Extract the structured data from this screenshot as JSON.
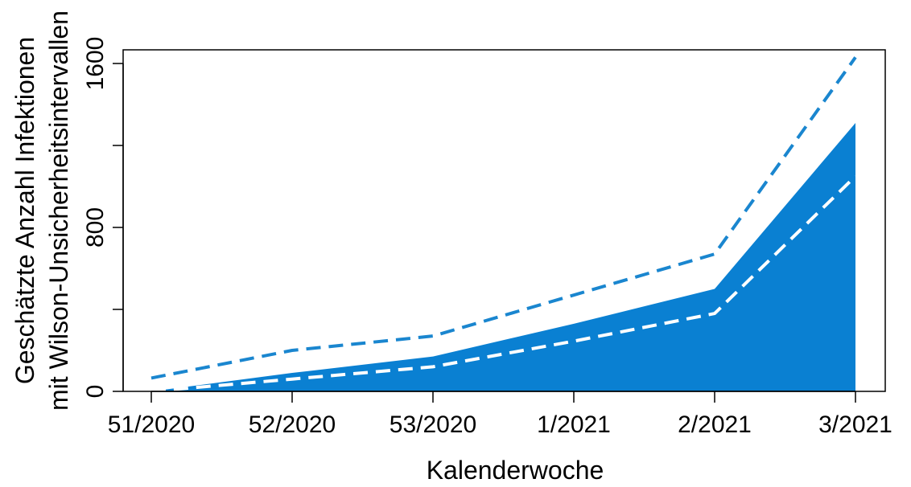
{
  "chart_data": {
    "type": "area",
    "title": "",
    "xlabel": "Kalenderwoche",
    "ylabel_lines": [
      "Geschätzte Anzahl Infektionen",
      "mit Wilson-Unsicherheitsintervallen"
    ],
    "categories": [
      "51/2020",
      "52/2020",
      "53/2020",
      "1/2021",
      "2/2021",
      "3/2021"
    ],
    "ylim": [
      0,
      1600
    ],
    "yticks": [
      0,
      400,
      800,
      1200,
      1600
    ],
    "ytick_labels": [
      "0",
      "",
      "800",
      "",
      "1600"
    ],
    "series": [
      {
        "role": "estimate",
        "style": "filled-area",
        "values": [
          0,
          90,
          170,
          330,
          500,
          1310
        ]
      },
      {
        "role": "upper",
        "style": "dashed",
        "values": [
          65,
          200,
          270,
          470,
          670,
          1630
        ]
      },
      {
        "role": "lower",
        "style": "dashed",
        "values": [
          0,
          60,
          120,
          245,
          380,
          1050
        ]
      }
    ],
    "colors": {
      "fill": "#0a80d2",
      "upper": "#1a86cf",
      "lower": "#ffffff",
      "axis": "#000000"
    },
    "grid": false,
    "legend": "none"
  }
}
